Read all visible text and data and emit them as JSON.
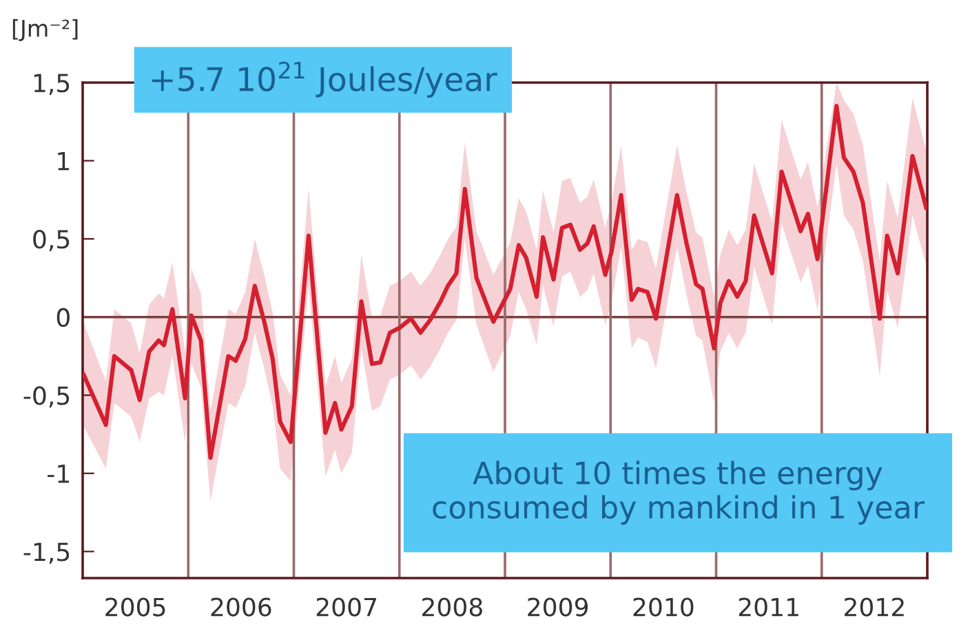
{
  "chart_data": {
    "type": "line",
    "ylabel": "[Jm⁻²]",
    "annotations": [
      "+5.7 10$^{21}$ Joules/year",
      "About 10 times the energy\nconsumed by mankind in 1 year"
    ],
    "x": [
      2005.01,
      2005.22,
      2005.3,
      2005.46,
      2005.54,
      2005.63,
      2005.72,
      2005.77,
      2005.85,
      2005.97,
      2006.03,
      2006.12,
      2006.21,
      2006.38,
      2006.45,
      2006.54,
      2006.63,
      2006.72,
      2006.8,
      2006.87,
      2006.97,
      2007.14,
      2007.3,
      2007.39,
      2007.45,
      2007.55,
      2007.64,
      2007.74,
      2007.82,
      2007.91,
      2008.0,
      2008.11,
      2008.2,
      2008.29,
      2008.39,
      2008.46,
      2008.54,
      2008.62,
      2008.73,
      2008.89,
      2009.05,
      2009.13,
      2009.2,
      2009.3,
      2009.36,
      2009.46,
      2009.54,
      2009.62,
      2009.71,
      2009.78,
      2009.84,
      2009.95,
      2010.01,
      2010.1,
      2010.2,
      2010.26,
      2010.35,
      2010.43,
      2010.63,
      2010.72,
      2010.81,
      2010.87,
      2010.98,
      2011.04,
      2011.12,
      2011.2,
      2011.28,
      2011.36,
      2011.53,
      2011.62,
      2011.8,
      2011.87,
      2011.96,
      2012.14,
      2012.21,
      2012.3,
      2012.39,
      2012.55,
      2012.62,
      2012.72,
      2012.86,
      2012.99
    ],
    "series": [
      {
        "color": "#d42030",
        "values": [
          -0.37,
          -0.69,
          -0.25,
          -0.34,
          -0.53,
          -0.22,
          -0.15,
          -0.18,
          0.05,
          -0.52,
          0.01,
          -0.15,
          -0.9,
          -0.25,
          -0.28,
          -0.14,
          0.2,
          -0.03,
          -0.27,
          -0.67,
          -0.8,
          0.52,
          -0.74,
          -0.55,
          -0.72,
          -0.57,
          0.1,
          -0.3,
          -0.29,
          -0.1,
          -0.07,
          -0.01,
          -0.1,
          -0.02,
          0.1,
          0.2,
          0.28,
          0.82,
          0.25,
          -0.03,
          0.18,
          0.46,
          0.38,
          0.13,
          0.51,
          0.24,
          0.57,
          0.59,
          0.43,
          0.47,
          0.58,
          0.27,
          0.42,
          0.78,
          0.11,
          0.18,
          0.16,
          -0.01,
          0.78,
          0.47,
          0.21,
          0.18,
          -0.2,
          0.09,
          0.23,
          0.13,
          0.23,
          0.65,
          0.28,
          0.93,
          0.55,
          0.66,
          0.37,
          1.35,
          1.02,
          0.93,
          0.73,
          -0.01,
          0.52,
          0.28,
          1.03,
          0.7
        ],
        "lower": [
          -0.7,
          -0.97,
          -0.55,
          -0.64,
          -0.8,
          -0.52,
          -0.48,
          -0.5,
          -0.25,
          -0.8,
          -0.3,
          -0.45,
          -1.18,
          -0.55,
          -0.58,
          -0.44,
          -0.1,
          -0.33,
          -0.57,
          -0.97,
          -1.05,
          0.2,
          -1.02,
          -0.85,
          -1.0,
          -0.87,
          -0.2,
          -0.6,
          -0.57,
          -0.4,
          -0.37,
          -0.31,
          -0.4,
          -0.32,
          -0.2,
          -0.1,
          -0.02,
          0.5,
          -0.05,
          -0.35,
          -0.12,
          0.16,
          0.05,
          -0.18,
          0.2,
          -0.06,
          0.26,
          0.29,
          0.13,
          0.17,
          0.28,
          -0.05,
          0.1,
          0.45,
          -0.2,
          -0.13,
          -0.16,
          -0.33,
          0.45,
          0.14,
          -0.12,
          -0.15,
          -0.55,
          -0.22,
          -0.1,
          -0.2,
          -0.1,
          0.32,
          -0.05,
          0.6,
          0.22,
          0.33,
          0.04,
          0.98,
          0.65,
          0.56,
          0.36,
          -0.38,
          0.17,
          -0.07,
          0.65,
          0.33
        ],
        "upper": [
          -0.04,
          -0.41,
          0.05,
          -0.04,
          -0.23,
          0.08,
          0.15,
          0.12,
          0.35,
          -0.22,
          0.31,
          0.15,
          -0.6,
          0.05,
          0.02,
          0.16,
          0.5,
          0.27,
          0.03,
          -0.37,
          -0.5,
          0.82,
          -0.44,
          -0.25,
          -0.42,
          -0.27,
          0.4,
          0.0,
          0.01,
          0.2,
          0.23,
          0.29,
          0.2,
          0.28,
          0.4,
          0.5,
          0.58,
          1.12,
          0.55,
          0.27,
          0.48,
          0.76,
          0.68,
          0.43,
          0.81,
          0.54,
          0.87,
          0.89,
          0.73,
          0.77,
          0.88,
          0.57,
          0.74,
          1.1,
          0.43,
          0.5,
          0.48,
          0.31,
          1.1,
          0.8,
          0.54,
          0.51,
          0.13,
          0.4,
          0.56,
          0.46,
          0.56,
          0.98,
          0.61,
          1.26,
          0.88,
          0.99,
          0.7,
          1.5,
          1.39,
          1.3,
          1.1,
          0.36,
          0.87,
          0.63,
          1.4,
          1.07
        ]
      }
    ],
    "xlim": [
      2005,
      2013
    ],
    "xticks": [
      {
        "value": 2005.5,
        "label": "2005"
      },
      {
        "value": 2006.5,
        "label": "2006"
      },
      {
        "value": 2007.5,
        "label": "2007"
      },
      {
        "value": 2008.5,
        "label": "2008"
      },
      {
        "value": 2009.5,
        "label": "2009"
      },
      {
        "value": 2010.5,
        "label": "2010"
      },
      {
        "value": 2011.5,
        "label": "2011"
      },
      {
        "value": 2012.5,
        "label": "2012"
      }
    ],
    "ylim": [
      -1.67,
      1.5
    ],
    "yticks": [
      {
        "value": 1.5,
        "label": "1,5"
      },
      1,
      {
        "value": 0.5,
        "label": "0,5"
      },
      0,
      {
        "value": -0.5,
        "label": "-0,5"
      },
      {
        "value": -1,
        "label": "-1"
      },
      {
        "value": -1.5,
        "label": "-1,5"
      }
    ],
    "ref_lines": [
      {
        "axis": "y",
        "value": 0,
        "color": "#7a4040"
      },
      {
        "axis": "x",
        "value": 2006,
        "color": "#9a6a6a"
      },
      {
        "axis": "x",
        "value": 2007,
        "color": "#9a6a6a"
      },
      {
        "axis": "x",
        "value": 2008,
        "color": "#9a6a6a"
      },
      {
        "axis": "x",
        "value": 2009,
        "color": "#9a6a6a"
      },
      {
        "axis": "x",
        "value": 2010,
        "color": "#9a6a6a"
      },
      {
        "axis": "x",
        "value": 2011,
        "color": "#9a6a6a"
      },
      {
        "axis": "x",
        "value": 2012,
        "color": "#9a6a6a"
      }
    ],
    "grid": false,
    "legend": false,
    "marker": "none",
    "line_style": "solid"
  }
}
